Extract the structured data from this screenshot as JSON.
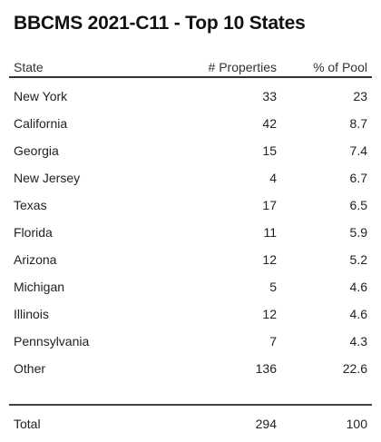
{
  "title": "BBCMS 2021-C11 - Top 10 States",
  "headers": {
    "state": "State",
    "properties": "# Properties",
    "pool": "% of Pool"
  },
  "rows": [
    {
      "state": "New York",
      "properties": "33",
      "pool": "23"
    },
    {
      "state": "California",
      "properties": "42",
      "pool": "8.7"
    },
    {
      "state": "Georgia",
      "properties": "15",
      "pool": "7.4"
    },
    {
      "state": "New Jersey",
      "properties": "4",
      "pool": "6.7"
    },
    {
      "state": "Texas",
      "properties": "17",
      "pool": "6.5"
    },
    {
      "state": "Florida",
      "properties": "11",
      "pool": "5.9"
    },
    {
      "state": "Arizona",
      "properties": "12",
      "pool": "5.2"
    },
    {
      "state": "Michigan",
      "properties": "5",
      "pool": "4.6"
    },
    {
      "state": "Illinois",
      "properties": "12",
      "pool": "4.6"
    },
    {
      "state": "Pennsylvania",
      "properties": "7",
      "pool": "4.3"
    },
    {
      "state": "Other",
      "properties": "136",
      "pool": "22.6"
    }
  ],
  "total": {
    "label": "Total",
    "properties": "294",
    "pool": "100"
  }
}
